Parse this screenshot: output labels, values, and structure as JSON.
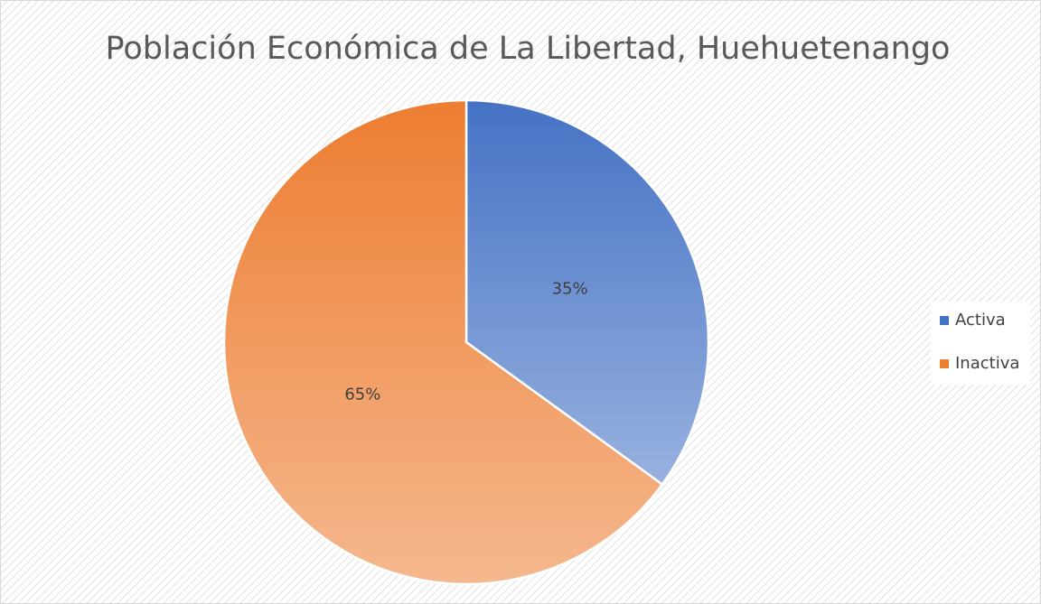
{
  "chart_data": {
    "type": "pie",
    "title": "Población Económica de La Libertad, Huehuetenango",
    "categories": [
      "Activa",
      "Inactiva"
    ],
    "values": [
      35,
      65
    ],
    "value_labels": [
      "35%",
      "65%"
    ],
    "colors": [
      "#4472c4",
      "#ed7d31"
    ],
    "legend": "right"
  }
}
